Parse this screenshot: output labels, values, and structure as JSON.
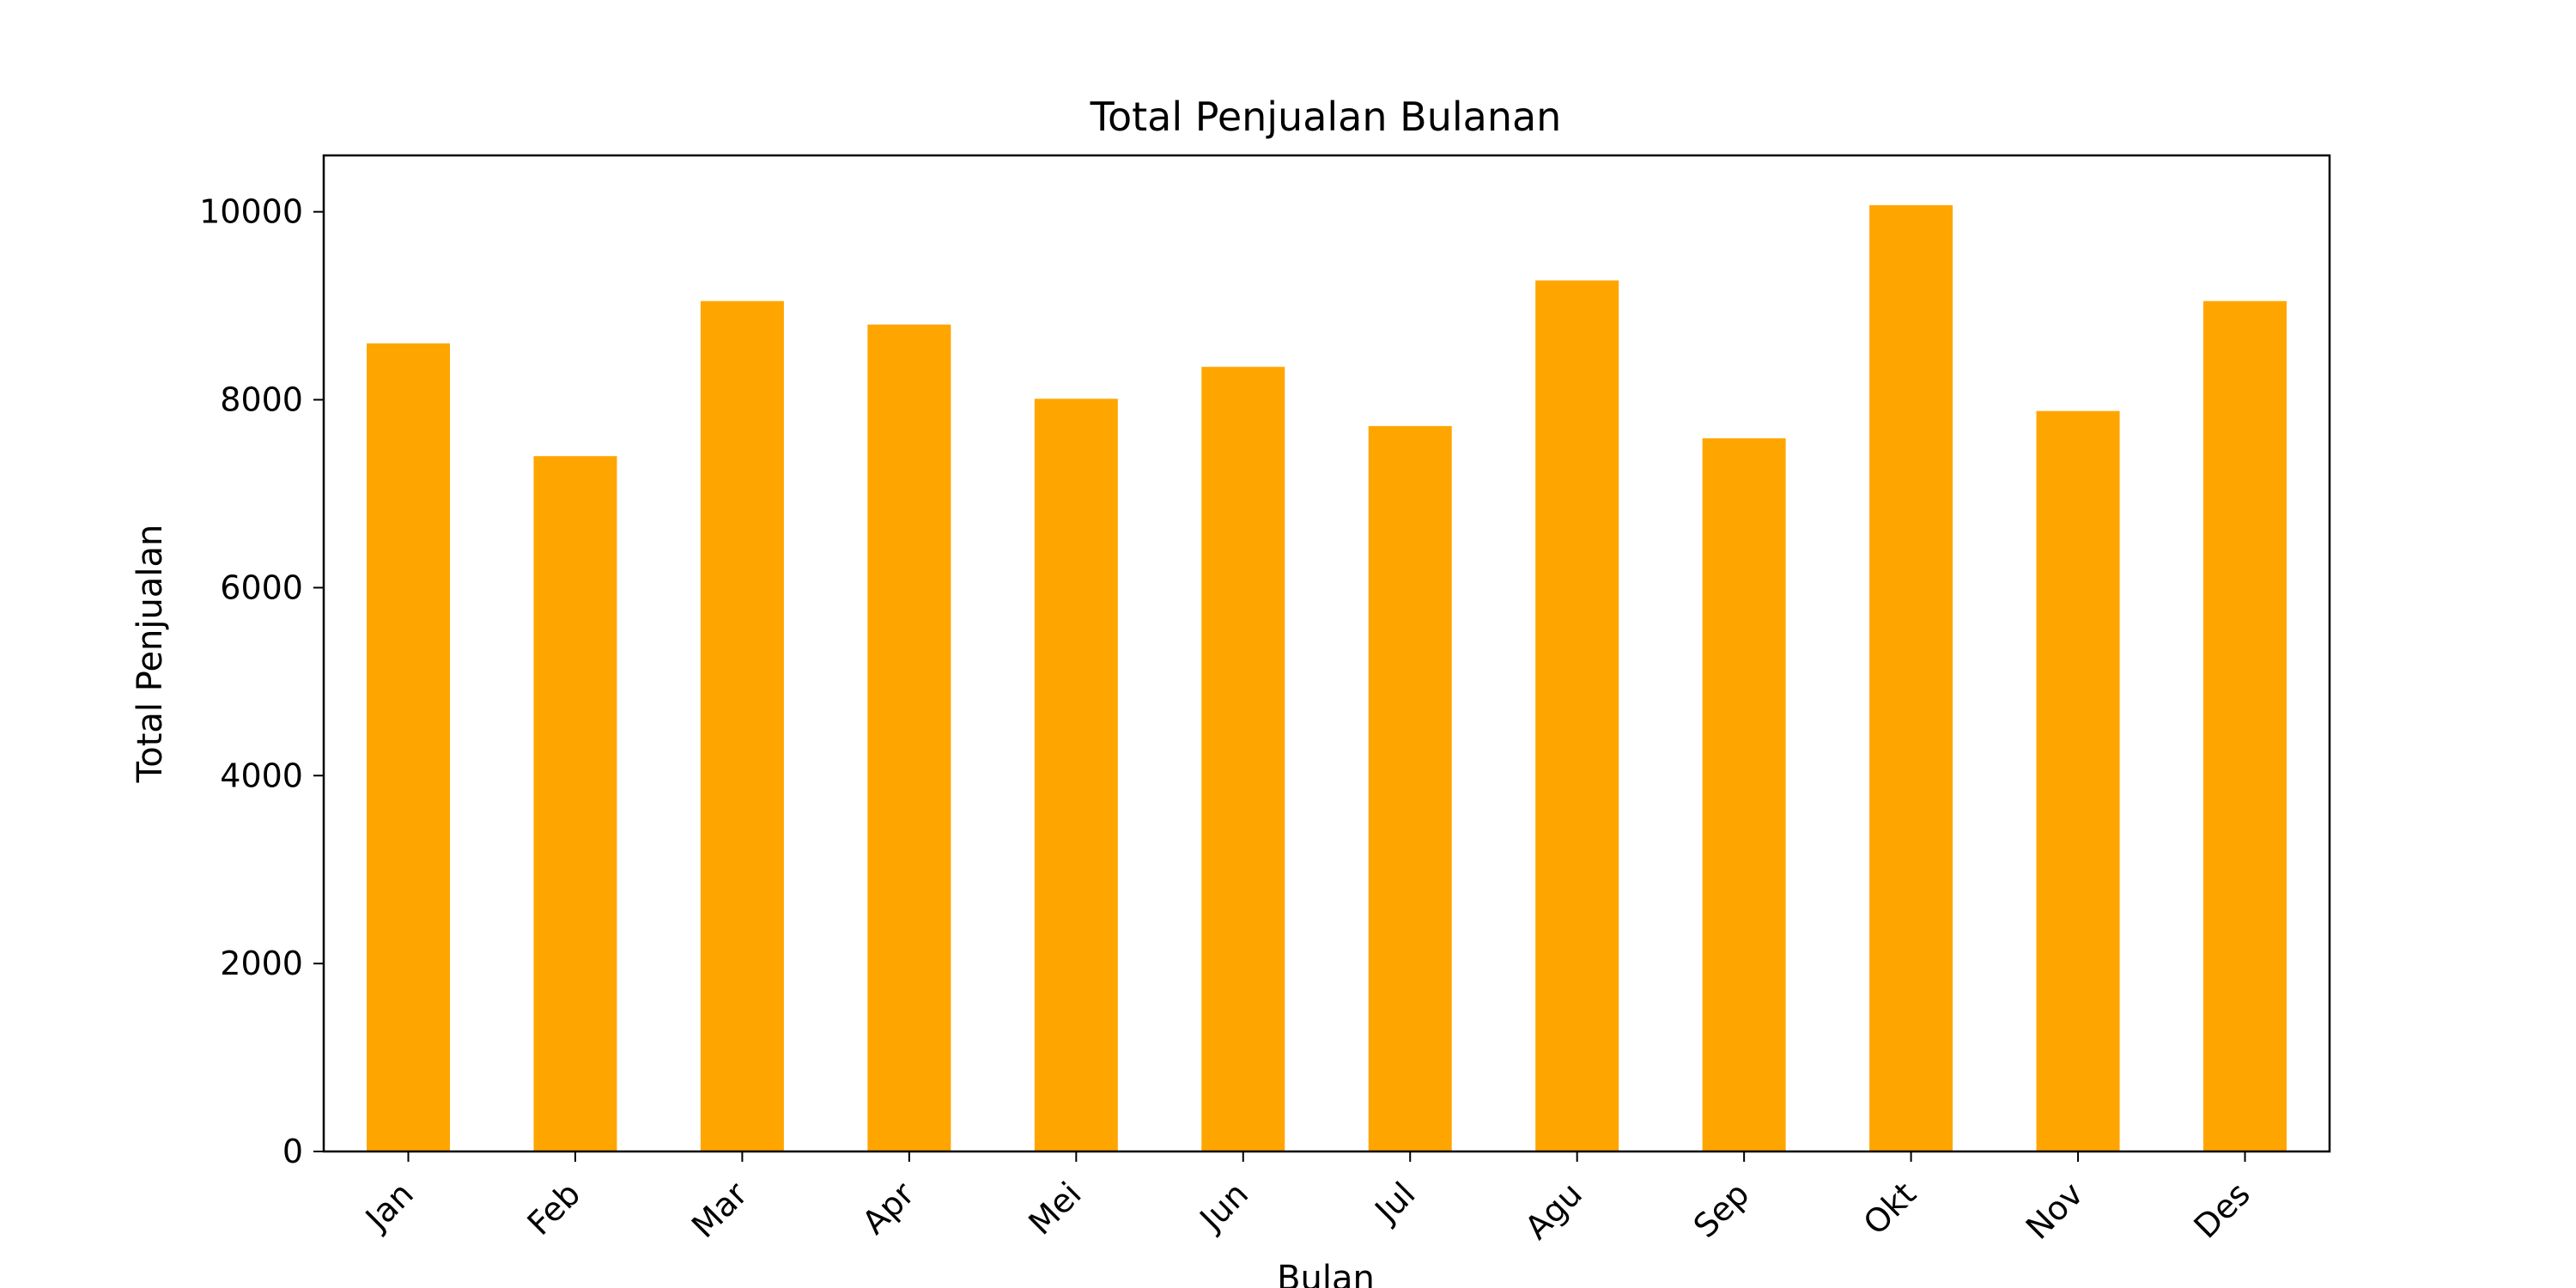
{
  "chart_data": {
    "type": "bar",
    "title": "Total Penjualan Bulanan",
    "xlabel": "Bulan",
    "ylabel": "Total Penjualan",
    "categories": [
      "Jan",
      "Feb",
      "Mar",
      "Apr",
      "Mei",
      "Jun",
      "Jul",
      "Agu",
      "Sep",
      "Okt",
      "Nov",
      "Des"
    ],
    "values": [
      8600,
      7400,
      9050,
      8800,
      8010,
      8350,
      7720,
      9270,
      7590,
      10070,
      7880,
      9050
    ],
    "ylim": [
      0,
      10600
    ],
    "yticks": [
      0,
      2000,
      4000,
      6000,
      8000,
      10000
    ],
    "bar_color": "#ffa500",
    "grid": false,
    "legend": "none"
  }
}
